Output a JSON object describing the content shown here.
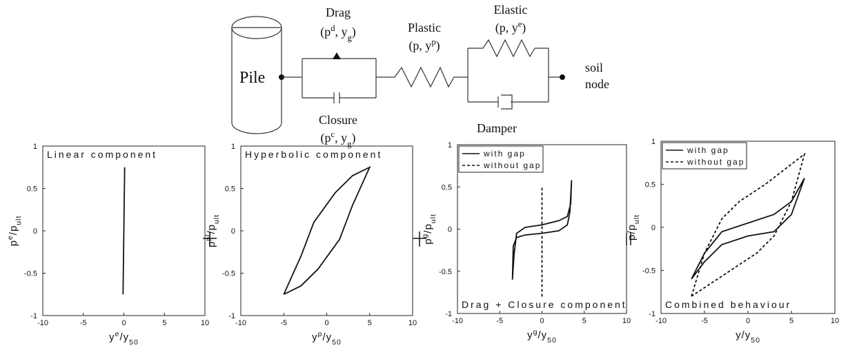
{
  "diagram": {
    "pile": "Pile",
    "drag": {
      "name": "Drag",
      "vars": [
        {
          "text": "(p"
        },
        {
          "text": "d",
          "pos": "sup"
        },
        {
          "text": ", y"
        },
        {
          "text": "g",
          "pos": "sub"
        },
        {
          "text": ")"
        }
      ]
    },
    "plastic": {
      "name": "Plastic",
      "vars": [
        {
          "text": "(p, y"
        },
        {
          "text": "p",
          "pos": "sup"
        },
        {
          "text": ")"
        }
      ]
    },
    "elastic": {
      "name": "Elastic",
      "vars": [
        {
          "text": "(p, y"
        },
        {
          "text": "e",
          "pos": "sup"
        },
        {
          "text": ")"
        }
      ]
    },
    "closure": {
      "name": "Closure",
      "vars": [
        {
          "text": "(p"
        },
        {
          "text": "c",
          "pos": "sup"
        },
        {
          "text": ", y"
        },
        {
          "text": "g",
          "pos": "sub"
        },
        {
          "text": ")"
        }
      ]
    },
    "damper": "Damper",
    "soil": "soil",
    "node": "node"
  },
  "chart_data": [
    {
      "type": "line",
      "title": "Linear component",
      "title_position": "top",
      "xlabel": [
        {
          "text": "y"
        },
        {
          "text": "e",
          "pos": "sup"
        },
        {
          "text": "/y"
        },
        {
          "text": "50",
          "pos": "sub"
        }
      ],
      "ylabel": [
        {
          "text": "p"
        },
        {
          "text": "e",
          "pos": "sup"
        },
        {
          "text": "/p"
        },
        {
          "text": "ult",
          "pos": "sub"
        }
      ],
      "xlim": [
        -10,
        10
      ],
      "ylim": [
        -1,
        1
      ],
      "xticks": [
        -10,
        -5,
        0,
        5,
        10
      ],
      "yticks": [
        -1,
        -0.5,
        0,
        0.5,
        1
      ],
      "series": [
        {
          "color": "#111111",
          "linestyle": "solid",
          "x": [
            -0.1,
            0,
            0.1
          ],
          "values": [
            -0.75,
            0,
            0.75
          ]
        }
      ]
    },
    {
      "type": "line",
      "title": "Hyperbolic component",
      "title_position": "top",
      "xlabel": [
        {
          "text": "y"
        },
        {
          "text": "p",
          "pos": "sup"
        },
        {
          "text": "/y"
        },
        {
          "text": "50",
          "pos": "sub"
        }
      ],
      "ylabel": [
        {
          "text": "p"
        },
        {
          "text": "pl",
          "pos": "sup"
        },
        {
          "text": "/p"
        },
        {
          "text": "ult",
          "pos": "sub"
        }
      ],
      "xlim": [
        -10,
        10
      ],
      "ylim": [
        -1,
        1
      ],
      "xticks": [
        -10,
        -5,
        0,
        5,
        10
      ],
      "yticks": [
        -1,
        -0.5,
        0,
        0.5,
        1
      ],
      "series": [
        {
          "color": "#111111",
          "linestyle": "solid",
          "x": [
            -5,
            -3,
            -1.5,
            1,
            3,
            5,
            3,
            1.5,
            -1,
            -3,
            -5
          ],
          "values": [
            -0.75,
            -0.3,
            0.1,
            0.45,
            0.65,
            0.75,
            0.3,
            -0.1,
            -0.45,
            -0.65,
            -0.75
          ]
        }
      ]
    },
    {
      "type": "line",
      "title": "Drag + Closure component",
      "title_position": "bottom",
      "legend": "upper left",
      "xlabel": [
        {
          "text": "y"
        },
        {
          "text": "g",
          "pos": "sup"
        },
        {
          "text": "/y"
        },
        {
          "text": "50",
          "pos": "sub"
        }
      ],
      "ylabel": [
        {
          "text": "p"
        },
        {
          "text": "g",
          "pos": "sup"
        },
        {
          "text": "/p"
        },
        {
          "text": "ult",
          "pos": "sub"
        }
      ],
      "xlim": [
        -10,
        10
      ],
      "ylim": [
        -1,
        1
      ],
      "xticks": [
        -10,
        -5,
        0,
        5,
        10
      ],
      "yticks": [
        -1,
        -0.5,
        0,
        0.5,
        1
      ],
      "series": [
        {
          "name": "with gap",
          "color": "#111111",
          "linestyle": "solid",
          "x": [
            -3.5,
            -3.4,
            -3,
            -2,
            0,
            2,
            3,
            3.3,
            3.5,
            3.4,
            3,
            2,
            0,
            -2,
            -3,
            -3.3,
            -3.5
          ],
          "values": [
            -0.6,
            -0.2,
            -0.1,
            -0.07,
            -0.05,
            -0.02,
            0.05,
            0.2,
            0.58,
            0.3,
            0.15,
            0.1,
            0.05,
            0.02,
            -0.05,
            -0.3,
            -0.6
          ]
        },
        {
          "name": "without gap",
          "color": "#111111",
          "linestyle": "dashed",
          "x": [
            0,
            0
          ],
          "values": [
            -0.8,
            0.5
          ]
        }
      ]
    },
    {
      "type": "line",
      "title": "Combined behaviour",
      "title_position": "bottom",
      "legend": "upper left",
      "xlabel": [
        {
          "text": "y/y"
        },
        {
          "text": "50",
          "pos": "sub"
        }
      ],
      "ylabel": [
        {
          "text": "p/p"
        },
        {
          "text": "ult",
          "pos": "sub"
        }
      ],
      "xlim": [
        -10,
        10
      ],
      "ylim": [
        -1,
        1
      ],
      "xticks": [
        -10,
        -5,
        0,
        5,
        10
      ],
      "yticks": [
        -1,
        -0.5,
        0,
        0.5,
        1
      ],
      "series": [
        {
          "name": "with gap",
          "color": "#111111",
          "linestyle": "solid",
          "x": [
            -6.5,
            -5,
            -3,
            0,
            3,
            5,
            6.5,
            5,
            3,
            0,
            -3,
            -5,
            -6.5
          ],
          "values": [
            -0.6,
            -0.3,
            -0.05,
            0.05,
            0.15,
            0.3,
            0.57,
            0.15,
            -0.05,
            -0.1,
            -0.2,
            -0.4,
            -0.6
          ]
        },
        {
          "name": "without gap",
          "color": "#111111",
          "linestyle": "dashed",
          "x": [
            -6.5,
            -5,
            -3,
            -1,
            2,
            6.5,
            5,
            3,
            1,
            -2,
            -6.5
          ],
          "values": [
            -0.8,
            -0.3,
            0.1,
            0.3,
            0.5,
            0.85,
            0.3,
            -0.1,
            -0.3,
            -0.5,
            -0.8
          ]
        }
      ]
    }
  ]
}
